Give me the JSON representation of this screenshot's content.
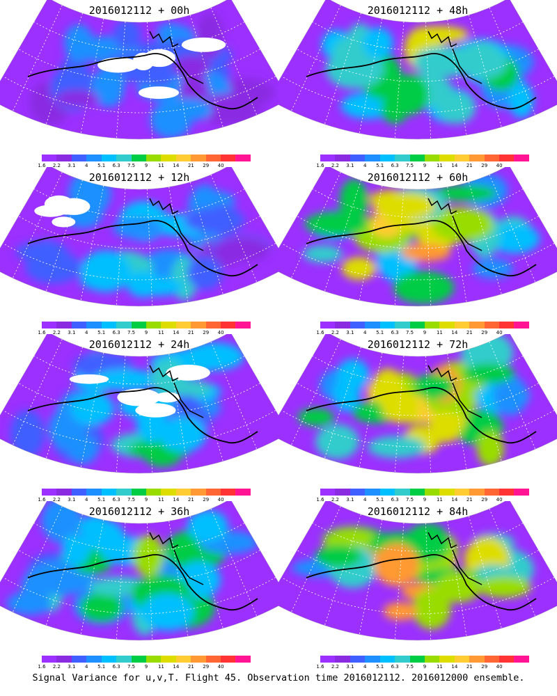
{
  "panels": [
    {
      "title": "2016012112 + 00h",
      "lead_hours": 0,
      "intensity": 0.35
    },
    {
      "title": "2016012112 + 48h",
      "lead_hours": 48,
      "intensity": 0.75
    },
    {
      "title": "2016012112 + 12h",
      "lead_hours": 12,
      "intensity": 0.45
    },
    {
      "title": "2016012112 + 60h",
      "lead_hours": 60,
      "intensity": 0.82
    },
    {
      "title": "2016012112 + 24h",
      "lead_hours": 24,
      "intensity": 0.55
    },
    {
      "title": "2016012112 + 72h",
      "lead_hours": 72,
      "intensity": 0.9
    },
    {
      "title": "2016012112 + 36h",
      "lead_hours": 36,
      "intensity": 0.65
    },
    {
      "title": "2016012112 + 84h",
      "lead_hours": 84,
      "intensity": 1.0
    }
  ],
  "colorbar": {
    "labels": [
      "1.6",
      "2.2",
      "3.1",
      "4",
      "5.1",
      "6.3",
      "7.5",
      "9",
      "11",
      "14",
      "21",
      "29",
      "40"
    ],
    "colors": [
      "#9b30ff",
      "#8a2be2",
      "#3f5fff",
      "#1e90ff",
      "#00bfff",
      "#33cccc",
      "#00cc44",
      "#99dd00",
      "#dddd00",
      "#ffcc33",
      "#ff9933",
      "#ff6633",
      "#ff3333",
      "#ff1493"
    ]
  },
  "caption": "Signal Variance for u,v,T. Flight 45. Observation time 2016012112. 2016012000 ensemble."
}
